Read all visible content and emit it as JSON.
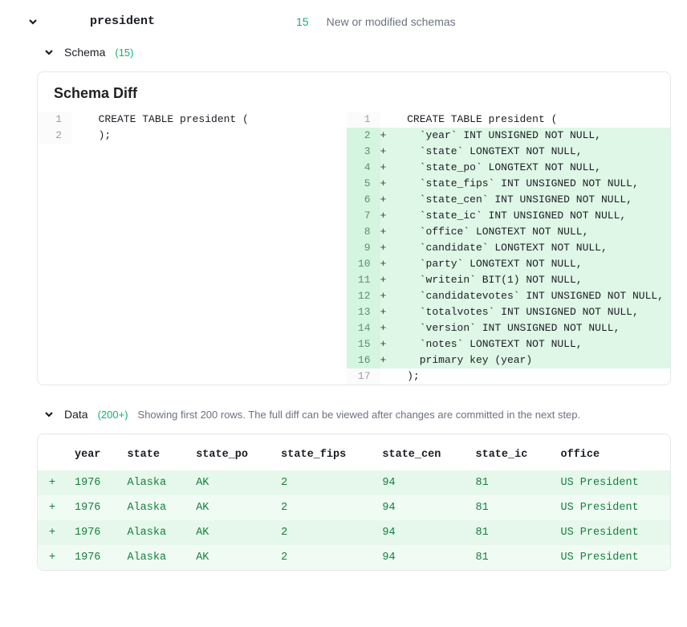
{
  "header": {
    "title": "president",
    "count": "15",
    "meta": "New or modified schemas"
  },
  "schema_section": {
    "label": "Schema",
    "count": "(15)"
  },
  "schema_diff": {
    "title": "Schema Diff",
    "left": [
      {
        "n": "1",
        "text": "CREATE TABLE president ("
      },
      {
        "n": "2",
        "text": ");"
      }
    ],
    "right": [
      {
        "n": "1",
        "added": false,
        "text": "CREATE TABLE president ("
      },
      {
        "n": "2",
        "added": true,
        "text": "  `year` INT UNSIGNED NOT NULL,"
      },
      {
        "n": "3",
        "added": true,
        "text": "  `state` LONGTEXT NOT NULL,"
      },
      {
        "n": "4",
        "added": true,
        "text": "  `state_po` LONGTEXT NOT NULL,"
      },
      {
        "n": "5",
        "added": true,
        "text": "  `state_fips` INT UNSIGNED NOT NULL,"
      },
      {
        "n": "6",
        "added": true,
        "text": "  `state_cen` INT UNSIGNED NOT NULL,"
      },
      {
        "n": "7",
        "added": true,
        "text": "  `state_ic` INT UNSIGNED NOT NULL,"
      },
      {
        "n": "8",
        "added": true,
        "text": "  `office` LONGTEXT NOT NULL,"
      },
      {
        "n": "9",
        "added": true,
        "text": "  `candidate` LONGTEXT NOT NULL,"
      },
      {
        "n": "10",
        "added": true,
        "text": "  `party` LONGTEXT NOT NULL,"
      },
      {
        "n": "11",
        "added": true,
        "text": "  `writein` BIT(1) NOT NULL,"
      },
      {
        "n": "12",
        "added": true,
        "text": "  `candidatevotes` INT UNSIGNED NOT NULL,"
      },
      {
        "n": "13",
        "added": true,
        "text": "  `totalvotes` INT UNSIGNED NOT NULL,"
      },
      {
        "n": "14",
        "added": true,
        "text": "  `version` INT UNSIGNED NOT NULL,"
      },
      {
        "n": "15",
        "added": true,
        "text": "  `notes` LONGTEXT NOT NULL,"
      },
      {
        "n": "16",
        "added": true,
        "text": "  primary key (year)"
      },
      {
        "n": "17",
        "added": false,
        "text": ");"
      }
    ]
  },
  "data_section": {
    "label": "Data",
    "count": "(200+)",
    "note": "Showing first 200 rows. The full diff can be viewed after changes are committed in the next step."
  },
  "data_table": {
    "columns": [
      "year",
      "state",
      "state_po",
      "state_fips",
      "state_cen",
      "state_ic",
      "office"
    ],
    "rows": [
      [
        "1976",
        "Alaska",
        "AK",
        "2",
        "94",
        "81",
        "US President"
      ],
      [
        "1976",
        "Alaska",
        "AK",
        "2",
        "94",
        "81",
        "US President"
      ],
      [
        "1976",
        "Alaska",
        "AK",
        "2",
        "94",
        "81",
        "US President"
      ],
      [
        "1976",
        "Alaska",
        "AK",
        "2",
        "94",
        "81",
        "US President"
      ]
    ],
    "plus": "+"
  },
  "colors": {
    "added_bg": "#dff7e6",
    "added_ln_bg": "#d4f5df",
    "accent": "#13b16d",
    "border": "#e5e7eb"
  }
}
